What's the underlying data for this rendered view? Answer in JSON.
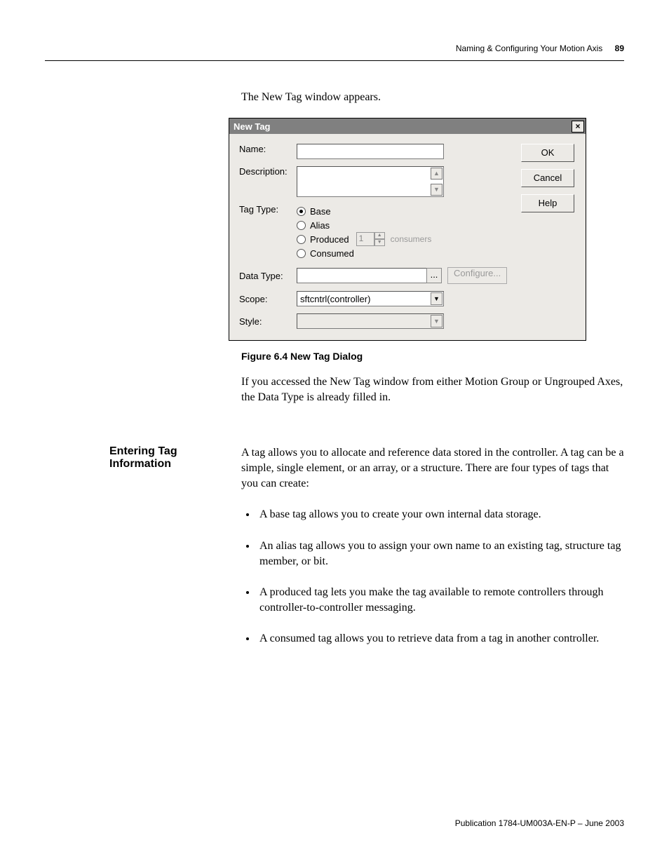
{
  "header": {
    "chapter_title": "Naming & Configuring Your Motion Axis",
    "page_number": "89"
  },
  "intro": "The New Tag window appears.",
  "dialog": {
    "title": "New Tag",
    "labels": {
      "name": "Name:",
      "description": "Description:",
      "tag_type": "Tag Type:",
      "data_type": "Data Type:",
      "scope": "Scope:",
      "style": "Style:"
    },
    "fields": {
      "name_value": "",
      "description_value": "",
      "data_type_value": "",
      "scope_value": "sftcntrl(controller)",
      "style_value": ""
    },
    "tag_type_options": {
      "base": "Base",
      "alias": "Alias",
      "produced": "Produced",
      "consumed": "Consumed",
      "selected": "base",
      "produced_count": "1",
      "consumers_label": "consumers"
    },
    "buttons": {
      "ok": "OK",
      "cancel": "Cancel",
      "help": "Help",
      "browse": "...",
      "configure": "Configure..."
    },
    "colors": {
      "titlebar_bg": "#808080",
      "titlebar_fg": "#ffffff",
      "dialog_bg": "#eceae6",
      "field_bg": "#ffffff",
      "disabled_text": "#9a9a9a",
      "border": "#7a7a7a"
    }
  },
  "figure_caption": "Figure 6.4 New Tag Dialog",
  "after_figure_para": "If you accessed the New Tag window from either Motion Group or Ungrouped Axes, the Data Type is already filled in.",
  "section": {
    "heading": "Entering Tag Information",
    "lead": "A tag allows you to allocate and reference data stored in the controller. A tag can be a simple, single element, or an array, or a structure. There are four types of tags that you can create:",
    "bullets": [
      "A base tag allows you to create your own internal data storage.",
      "An alias tag allows you to assign your own name to an existing tag, structure tag member, or bit.",
      "A produced tag lets you make the tag available to remote controllers through controller-to-controller messaging.",
      "A consumed tag allows you to retrieve data from a tag in another controller."
    ]
  },
  "footer": "Publication 1784-UM003A-EN-P – June 2003",
  "typography": {
    "body_font": "Georgia/serif",
    "body_size_pt": 12,
    "heading_font": "Arial/Helvetica",
    "heading_weight": "bold"
  }
}
